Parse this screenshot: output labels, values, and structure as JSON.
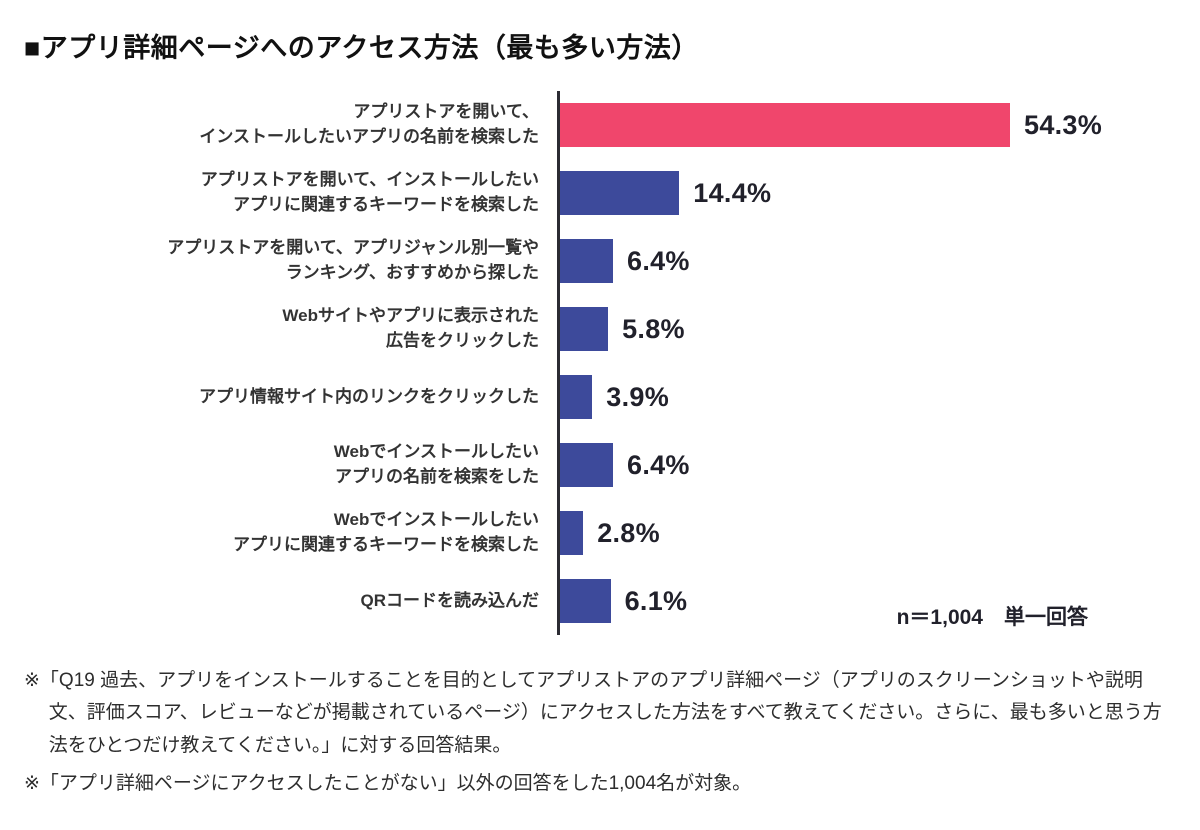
{
  "title": "■アプリ詳細ページへのアクセス方法（最も多い方法）",
  "sample_note": "n＝1,004　単一回答",
  "footnotes": [
    "※「Q19 過去、アプリをインストールすることを目的としてアプリストアのアプリ詳細ページ（アプリのスクリーンショットや説明文、評価スコア、レビューなどが掲載されているページ）にアクセスした方法をすべて教えてください。さらに、最も多いと思う方法をひとつだけ教えてください。」に対する回答結果。",
    "※「アプリ詳細ページにアクセスしたことがない」以外の回答をした1,004名が対象。"
  ],
  "colors": {
    "highlight_bar": "#F0466C",
    "default_bar": "#3D4A9B",
    "axis": "#2B2B33"
  },
  "chart_data": {
    "type": "bar",
    "orientation": "horizontal",
    "title": "アプリ詳細ページへのアクセス方法（最も多い方法）",
    "categories": [
      "アプリストアを開いて、\nインストールしたいアプリの名前を検索した",
      "アプリストアを開いて、インストールしたい\nアプリに関連するキーワードを検索した",
      "アプリストアを開いて、アプリジャンル別一覧や\nランキング、おすすめから探した",
      "Webサイトやアプリに表示された\n広告をクリックした",
      "アプリ情報サイト内のリンクをクリックした",
      "Webでインストールしたい\nアプリの名前を検索をした",
      "Webでインストールしたい\nアプリに関連するキーワードを検索した",
      "QRコードを読み込んだ"
    ],
    "values": [
      54.3,
      14.4,
      6.4,
      5.8,
      3.9,
      6.4,
      2.8,
      6.1
    ],
    "value_labels": [
      "54.3%",
      "14.4%",
      "6.4%",
      "5.8%",
      "3.9%",
      "6.4%",
      "2.8%",
      "6.1%"
    ],
    "xlim": [
      0,
      60
    ],
    "highlight_index": 0,
    "grid": false,
    "legend": "none",
    "n": "1,004",
    "answer_type": "単一回答"
  }
}
